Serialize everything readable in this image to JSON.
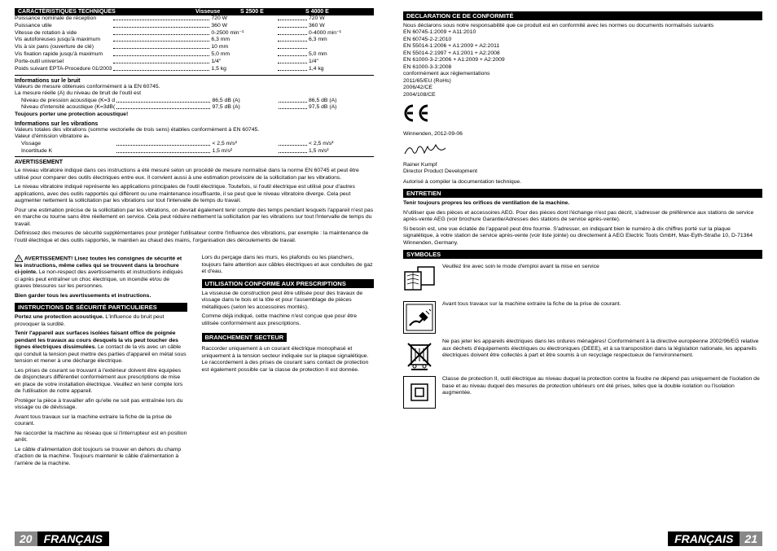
{
  "left": {
    "specHeader": {
      "title": "CARACTÉRISTIQUES TECHNIQUES",
      "c2": "Visseuse",
      "c3": "S 2500 E",
      "c4": "S 4000 E"
    },
    "specs": [
      {
        "label": "Puissance nominale de réception",
        "v1": "720 W",
        "v2": "720 W"
      },
      {
        "label": "Puissance utile",
        "v1": "360 W",
        "v2": "360 W"
      },
      {
        "label": "Vitesse de rotation à vide",
        "v1": "0-2500 min⁻¹",
        "v2": "0-4000 min⁻¹"
      },
      {
        "label": "Vis autoforeuses jusqu'à maximum",
        "v1": "6,3 mm",
        "v2": "6,3 mm"
      },
      {
        "label": "Vis à six pans (ouverture de clé)",
        "v1": "10 mm",
        "v2": ""
      },
      {
        "label": "Vis fixation rapide jusqu'à maximum",
        "v1": "5,0 mm",
        "v2": "5,0 mm"
      },
      {
        "label": "Porte-outil universel",
        "v1": "1/4\"",
        "v2": "1/4\""
      },
      {
        "label": "Poids suivant EPTA-Procedure 01/2003",
        "v1": "1,5 kg",
        "v2": "1,4 kg"
      }
    ],
    "noiseHead": "Informations sur le bruit",
    "noise1": "Valeurs de mesure obtenues conformément à la EN 60745.",
    "noise2": "La mesure réelle (A) du niveau de bruit de l'outil est",
    "noiseRows": [
      {
        "label": "Niveau de pression acoustique (K=3 dB(A))",
        "v1": "86,5 dB (A)",
        "v2": "86,5 dB (A)"
      },
      {
        "label": "Niveau d'intensité acoustique (K=3dB(A))",
        "v1": "97,5 dB (A)",
        "v2": "97,5 dB (A)"
      }
    ],
    "noiseWarn": "Toujours porter une protection acoustique!",
    "vibHead": "Informations sur les vibrations",
    "vib1": "Valeurs totales des vibrations (somme vectorielle de trois sens) établies conformément à EN 60745.",
    "vib2": "Valeur d'émission vibratoire aₕ",
    "vibRows": [
      {
        "label": "Vissage",
        "v1": "< 2,5 m/s²",
        "v2": "< 2,5 m/s²"
      },
      {
        "label": "Incertitude K",
        "v1": "1,5 m/s²",
        "v2": "1,5 m/s²"
      }
    ],
    "avertHead": "AVERTISSEMENT",
    "avertP1": "Le niveau vibratoire indiqué dans ces instructions a été mesuré selon un procédé de mesure normalisé dans la norme EN 60745 et peut être utilisé pour comparer des outils électriques entre eux. Il convient aussi à une estimation provisoire de la sollicitation par les vibrations.",
    "avertP2": "Le niveau vibratoire indiqué représente les applications principales de l'outil électrique. Toutefois, si l'outil électrique est utilisé pour d'autres applications, avec des outils rapportés qui diffèrent ou une maintenance insuffisante, il se peut que le niveau vibratoire diverge. Cela peut augmenter nettement la sollicitation par les vibrations sur tout l'intervalle de temps du travail.",
    "avertP3": "Pour une estimation précise de la sollicitation par les vibrations, on devrait également tenir compte des temps pendant lesquels l'appareil n'est pas en marche ou tourne sans être réellement en service. Cela peut réduire nettement la sollicitation par les vibrations sur tout l'intervalle de temps du travail.",
    "avertP4": "Définissez des mesures de sécurité supplémentaires pour protéger l'utilisateur contre l'influence des vibrations, par exemple : la maintenance de l'outil électrique et des outils rapportés, le maintien au chaud des mains, l'organisation des déroulements de travail.",
    "col1": {
      "warnBold": "AVERTISSEMENT! Lisez toutes les consignes de sécurité et les instructions, même celles qui se trouvent dans la brochure ci-jointe.",
      "warnRest": " Le non-respect des avertissements et instructions indiqués ci après peut entraîner un choc électrique, un incendie et/ou de graves blessures sur les personnes.",
      "warnKeep": "Bien garder tous les avertissements et instructions.",
      "secHead": "INSTRUCTIONS DE SÉCURITÉ PARTICULIERES",
      "p1b": "Portez une protection acoustique.",
      "p1": " L'influence du bruit peut provoquer la surdité.",
      "p2b": "Tenir l'appareil aux surfaces isolées faisant office de poignée pendant les travaux au cours desquels la vis peut toucher des lignes électriques dissimulées.",
      "p2": " Le contact de la vis avec un câble qui conduit la tension peut mettre des parties d'appareil en métal sous tension et mener à une décharge électrique.",
      "p3": "Les prises de courant se trouvant à l'extérieur doivent être équipées de disjoncteurs différentiel conformément aux prescriptions de mise en place de votre installation électrique. Veuillez en tenir compte lors de l'utilisation de notre appareil.",
      "p4": "Protéger la pièce à travailler afin qu'elle ne soit pas entraînée lors du vissage ou de dévissage.",
      "p5": "Avant tous travaux sur la machine extraire la fiche de la prise de courant.",
      "p6": "Ne raccorder la machine au réseau que si l'interrupteur est en position arrêt.",
      "p7": "Le câble d'alimentation doit toujours se trouver en dehors du champ d'action de la machine. Toujours maintenir le câble d'alimentation à l'arrière de la machine."
    },
    "col2": {
      "p0": "Lors du perçage dans les murs, les plafonds ou les planchers, toujours faire attention aux câbles électriques et aux conduites de gaz et d'eau.",
      "useHead": "UTILISATION CONFORME AUX PRESCRIPTIONS",
      "useP1": "La visseuse de construction peut être utilisée pour des travaux de vissage dans le bois et la tôle et pour l'assemblage de pièces métalliques (selon les accessoires montés).",
      "useP2": "Comme déjà indiqué, cette machine n'est conçue que pour être utilisée conformément aux prescriptions.",
      "mainsHead": "BRANCHEMENT SECTEUR",
      "mainsP": "Raccorder uniquement à un courant électrique monophasé et uniquement à la tension secteur indiquée sur la plaque signalétique. Le raccordement à des prises de courant sans contact de protection est également possible car la classe de protection II est donnée."
    }
  },
  "right": {
    "declHead": "DECLARATION CE DE CONFORMITÉ",
    "declP": "Nous déclarons sous notre responsabilité que ce produit est en conformité avec les normes ou documents normalisés suivants",
    "norms": [
      "EN 60745-1:2009 + A11:2010",
      "EN 60745-2-2:2010",
      "EN 55014-1:2006 + A1:2009 + A2:2011",
      "EN 55014-2:1997 + A1:2001 + A2:2008",
      "EN 61000-3-2:2006 + A1:2009 + A2:2009",
      "EN 61000-3-3:2008"
    ],
    "reg": "conformément aux réglementations",
    "regs": [
      "2011/65/EU (RoHs)",
      "2006/42/CE",
      "2004/108/CE"
    ],
    "place": "Winnenden, 2012-09-06",
    "name": "Rainer Kumpf",
    "role": "Director Product Development",
    "auth": "Autorisé à compiler la documentation technique.",
    "entHead": "ENTRETIEN",
    "entP1": "Tenir toujours propres les orifices de ventilation de la machine.",
    "entP2": "N'utiliser que des pièces et accessoires AEG. Pour des pièces dont l'échange n'est pas décrit, s'adresser de préférence aux stations de service après-vente AEG (voir brochure Garantie/Adresses des stations de service après-vente).",
    "entP3": "Si besoin est, une vue éclatée de l'appareil peut être fournie. S'adresser, en indiquant bien le numéro à dix chiffres porté sur la plaque signalétique, à votre station de service après-vente (voir liste jointe) ou directement à AEG Electric Tools GmbH, Max-Eyth-Straße 10, D-71364 Winnenden, Germany.",
    "symHead": "SYMBOLES",
    "sym1": "Veuillez lire avec soin le mode d'emploi avant la mise en service",
    "sym2": "Avant tous travaux sur la machine extraire la fiche de la prise de courant.",
    "sym3": "Ne pas jeter les appareils électriques dans les ordures ménagères! Conformément à la directive européenne 2002/96/EG relative aux déchets d'équipements électriques ou électroniques (DEEE), et à sa transposition dans la législation nationale, les appareils électriques doivent être collectés à part et être soumis à un recyclage respectueux de l'environnement.",
    "sym4": "Classe de protection II, outil électrique au niveau duquel la protection contre la foudre ne dépend pas uniquement de l'isolation de base et au niveau duquel des mesures de protection ultérieurs ont été prises, telles que la double isolation ou l'isolation augmentée."
  },
  "footer": {
    "pageLeft": "20",
    "pageRight": "21",
    "lang": "FRANÇAIS"
  }
}
